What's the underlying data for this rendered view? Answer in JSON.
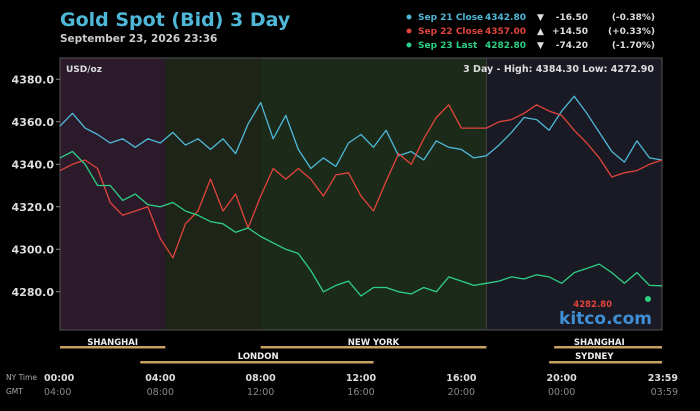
{
  "header": {
    "title": "Gold Spot (Bid) 3 Day",
    "timestamp": "September 23, 2026 23:36"
  },
  "legend": {
    "entries": [
      {
        "label": "Sep 21 Close",
        "price": "4342.80",
        "arrow": "▼",
        "change": "-16.50",
        "pct": "(-0.38%)",
        "color": "#4fb8d8"
      },
      {
        "label": "Sep 22 Close",
        "price": "4357.00",
        "arrow": "▲",
        "change": "+14.50",
        "pct": "(+0.33%)",
        "color": "#e0443c"
      },
      {
        "label": "Sep 23 Last",
        "price": "4282.80",
        "arrow": "▼",
        "change": "-74.20",
        "pct": "(-1.70%)",
        "color": "#2ecf86"
      }
    ]
  },
  "plot": {
    "unit_label": "USD/oz",
    "stats_label": "3 Day - High: 4384.30  Low: 4272.90",
    "last_price_label": "4282.80",
    "watermark": "kitco.com"
  },
  "markets": {
    "row1": [
      {
        "name": "SHANGHAI",
        "from": 0,
        "to": 4.2,
        "label_at": 2.1
      },
      {
        "name": "NEW YORK",
        "from": 8,
        "to": 17,
        "label_at": 12.5
      },
      {
        "name": "SHANGHAI",
        "from": 19.7,
        "to": 24,
        "label_at": 21.5
      }
    ],
    "row2": [
      {
        "name": "LONDON",
        "from": 3.2,
        "to": 12.5,
        "label_at": 7.9
      },
      {
        "name": "SYDNEY",
        "from": 19.5,
        "to": 24,
        "label_at": 21.3
      }
    ]
  },
  "time_axis": {
    "ny_label": "NY Time",
    "gmt_label": "GMT",
    "ticks": [
      {
        "hour": 0,
        "ny": "00:00",
        "gmt": "04:00"
      },
      {
        "hour": 4,
        "ny": "04:00",
        "gmt": "08:00"
      },
      {
        "hour": 8,
        "ny": "08:00",
        "gmt": "12:00"
      },
      {
        "hour": 12,
        "ny": "12:00",
        "gmt": "16:00"
      },
      {
        "hour": 16,
        "ny": "16:00",
        "gmt": "20:00"
      },
      {
        "hour": 20,
        "ny": "20:00",
        "gmt": "00:00"
      },
      {
        "hour": 23.98,
        "ny": "23:59",
        "gmt": "03:59"
      }
    ]
  },
  "colors": {
    "sep21": "#4fb8d8",
    "sep22": "#e0443c",
    "sep23": "#2ecf86",
    "title": "#4fb8d8",
    "gold_bar": "#c8a060",
    "session_asia": "#2a1a2a",
    "session_london": "#1e2418",
    "session_ny": "#1c2a1a",
    "session_evening": "#1a1a24"
  },
  "chart_data": {
    "type": "line",
    "title": "Gold Spot (Bid) 3 Day",
    "xlabel": "NY Time",
    "ylabel": "USD/oz",
    "ylim": [
      4262,
      4390
    ],
    "xlim": [
      0,
      24
    ],
    "yticks": [
      4280.0,
      4300.0,
      4320.0,
      4340.0,
      4360.0,
      4380.0
    ],
    "grid": false,
    "legend_position": "top-right",
    "series": [
      {
        "name": "Sep 21 Close",
        "x": [
          0,
          0.5,
          1,
          1.5,
          2,
          2.5,
          3,
          3.5,
          4,
          4.5,
          5,
          5.5,
          6,
          6.5,
          7,
          7.5,
          8,
          8.5,
          9,
          9.5,
          10,
          10.5,
          11,
          11.5,
          12,
          12.5,
          13,
          13.5,
          14,
          14.5,
          15,
          15.5,
          16,
          16.5,
          17,
          17.5,
          18,
          18.5,
          19,
          19.5,
          20,
          20.5,
          21,
          21.5,
          22,
          22.5,
          23,
          23.5,
          24
        ],
        "y": [
          4358,
          4364,
          4357,
          4354,
          4350,
          4352,
          4348,
          4352,
          4350,
          4355,
          4349,
          4352,
          4347,
          4352,
          4345,
          4359,
          4369,
          4352,
          4363,
          4347,
          4338,
          4343,
          4339,
          4350,
          4354,
          4348,
          4356,
          4344,
          4346,
          4342,
          4351,
          4348,
          4347,
          4343,
          4344,
          4349,
          4355,
          4362,
          4361,
          4356,
          4365,
          4372,
          4364,
          4355,
          4346,
          4341,
          4351,
          4343,
          4342
        ]
      },
      {
        "name": "Sep 22 Close",
        "x": [
          0,
          0.5,
          1,
          1.5,
          2,
          2.5,
          3,
          3.5,
          4,
          4.5,
          5,
          5.5,
          6,
          6.5,
          7,
          7.5,
          8,
          8.5,
          9,
          9.5,
          10,
          10.5,
          11,
          11.5,
          12,
          12.5,
          13,
          13.5,
          14,
          14.5,
          15,
          15.5,
          16,
          16.5,
          17,
          17.5,
          18,
          18.5,
          19,
          19.5,
          20,
          20.5,
          21,
          21.5,
          22,
          22.5,
          23,
          23.5,
          24
        ],
        "y": [
          4337,
          4340,
          4342,
          4338,
          4322,
          4316,
          4318,
          4320,
          4305,
          4296,
          4312,
          4318,
          4333,
          4318,
          4326,
          4310,
          4325,
          4338,
          4333,
          4338,
          4333,
          4325,
          4335,
          4336,
          4325,
          4318,
          4332,
          4345,
          4340,
          4352,
          4362,
          4368,
          4357,
          4357,
          4357,
          4360,
          4361,
          4364,
          4368,
          4365,
          4363,
          4356,
          4350,
          4343,
          4334,
          4336,
          4337,
          4340,
          4342
        ]
      },
      {
        "name": "Sep 23 Last",
        "x": [
          0,
          0.5,
          1,
          1.5,
          2,
          2.5,
          3,
          3.5,
          4,
          4.5,
          5,
          5.5,
          6,
          6.5,
          7,
          7.5,
          8,
          8.5,
          9,
          9.5,
          10,
          10.5,
          11,
          11.5,
          12,
          12.5,
          13,
          13.5,
          14,
          14.5,
          15,
          15.5,
          16,
          16.5,
          17,
          17.5,
          18,
          18.5,
          19,
          19.5,
          20,
          20.5,
          21,
          21.5,
          22,
          22.5,
          23,
          23.5,
          24
        ],
        "y": [
          4343,
          4346,
          4340,
          4330,
          4330,
          4323,
          4326,
          4321,
          4320,
          4322,
          4318,
          4316,
          4313,
          4312,
          4308,
          4310,
          4306,
          4303,
          4300,
          4298,
          4290,
          4280,
          4283,
          4285,
          4278,
          4282,
          4282,
          4280,
          4279,
          4282,
          4280,
          4287,
          4285,
          4283,
          4284,
          4285,
          4287,
          4286,
          4288,
          4287,
          4284,
          4289,
          4291,
          4293,
          4289,
          4284,
          4289,
          4283,
          4282.8
        ]
      }
    ]
  }
}
